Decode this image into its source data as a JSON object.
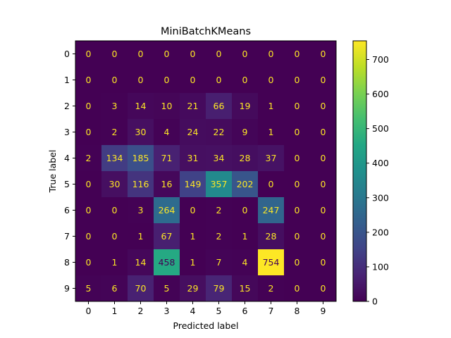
{
  "chart_data": {
    "type": "heatmap",
    "title": "MiniBatchKMeans",
    "xlabel": "Predicted label",
    "ylabel": "True label",
    "x_categories": [
      "0",
      "1",
      "2",
      "3",
      "4",
      "5",
      "6",
      "7",
      "8",
      "9"
    ],
    "y_categories": [
      "0",
      "1",
      "2",
      "3",
      "4",
      "5",
      "6",
      "7",
      "8",
      "9"
    ],
    "values": [
      [
        0,
        0,
        0,
        0,
        0,
        0,
        0,
        0,
        0,
        0
      ],
      [
        0,
        0,
        0,
        0,
        0,
        0,
        0,
        0,
        0,
        0
      ],
      [
        0,
        3,
        14,
        10,
        21,
        66,
        19,
        1,
        0,
        0
      ],
      [
        0,
        2,
        30,
        4,
        24,
        22,
        9,
        1,
        0,
        0
      ],
      [
        2,
        134,
        185,
        71,
        31,
        34,
        28,
        37,
        0,
        0
      ],
      [
        0,
        30,
        116,
        16,
        149,
        357,
        202,
        0,
        0,
        0
      ],
      [
        0,
        0,
        3,
        264,
        0,
        2,
        0,
        247,
        0,
        0
      ],
      [
        0,
        0,
        1,
        67,
        1,
        2,
        1,
        28,
        0,
        0
      ],
      [
        0,
        1,
        14,
        458,
        1,
        7,
        4,
        754,
        0,
        0
      ],
      [
        5,
        6,
        70,
        5,
        29,
        79,
        15,
        2,
        0,
        0
      ]
    ],
    "colormap": "viridis",
    "colorbar": {
      "range": [
        0,
        754
      ],
      "ticks": [
        0,
        100,
        200,
        300,
        400,
        500,
        600,
        700
      ]
    },
    "grid": false
  }
}
